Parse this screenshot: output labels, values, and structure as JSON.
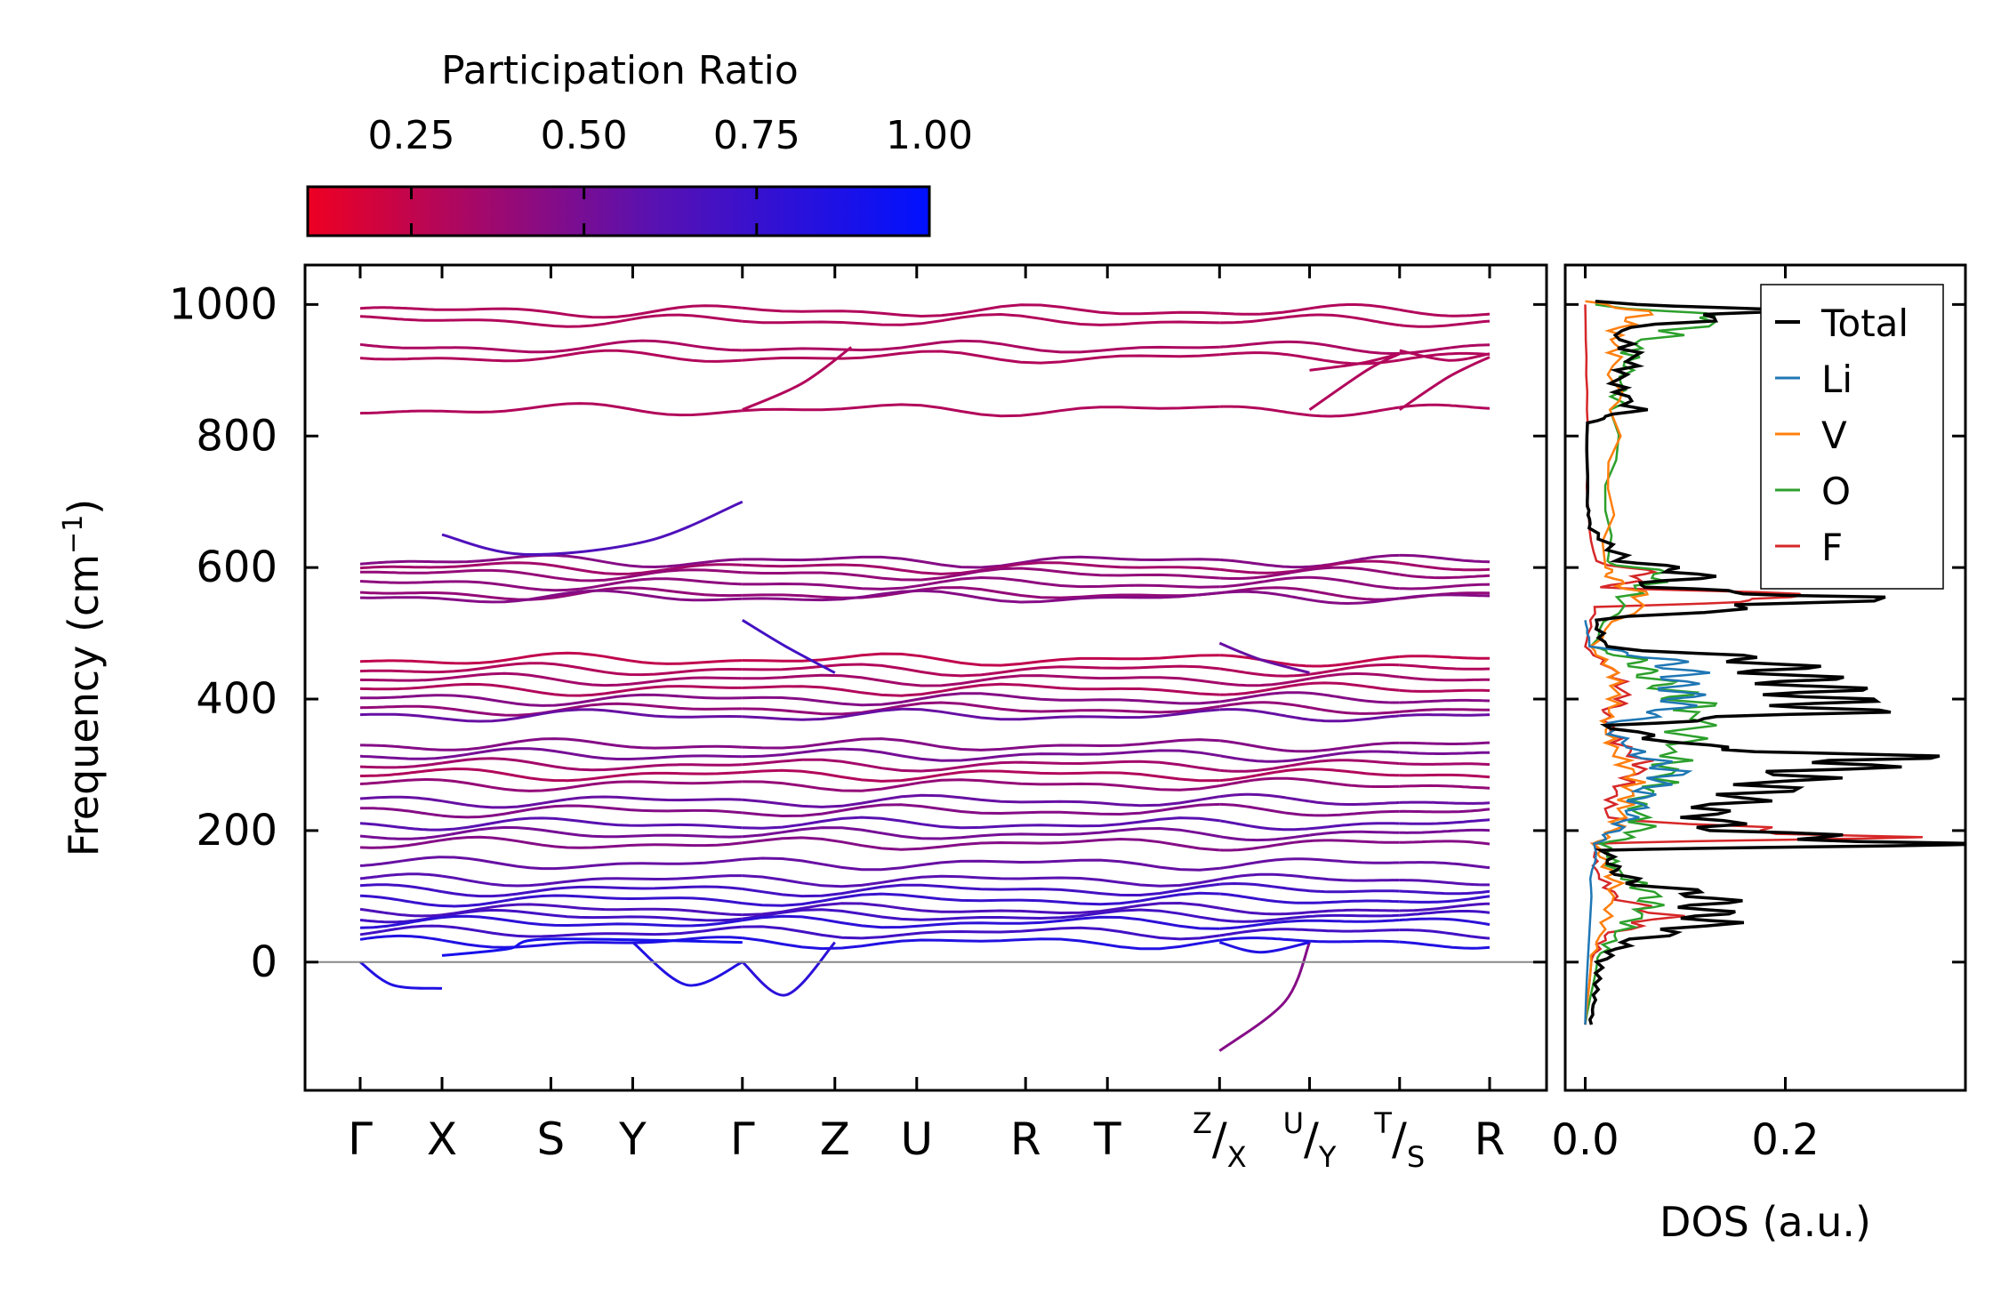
{
  "colorbar": {
    "title": "Participation Ratio",
    "range": [
      0.1,
      1.0
    ],
    "ticks": [
      0.25,
      0.5,
      0.75,
      1.0
    ],
    "tick_labels": [
      "0.25",
      "0.50",
      "0.75",
      "1.00"
    ],
    "colors": [
      "#ee0022",
      "#5a11b0",
      "#0011ff"
    ]
  },
  "chart_data": [
    {
      "type": "line",
      "subtype": "phonon-band-structure",
      "ylabel": "Frequency (cm",
      "ylabel_sup": "−1",
      "ylabel_end": ")",
      "ylim": [
        -195,
        1060
      ],
      "yticks": [
        0,
        200,
        400,
        600,
        800,
        1000
      ],
      "k_segments": [
        [
          0,
          1
        ],
        [
          1,
          4
        ],
        [
          4,
          7
        ],
        [
          7,
          8
        ],
        [
          8,
          9
        ],
        [
          9,
          10
        ],
        [
          10,
          11
        ]
      ],
      "k_ticks": [
        {
          "pos": 0,
          "label": "Γ"
        },
        {
          "pos": 1,
          "label": "X"
        },
        {
          "pos": 2.33,
          "label": "S"
        },
        {
          "pos": 3.33,
          "label": "Y"
        },
        {
          "pos": 4.67,
          "label": "Γ"
        },
        {
          "pos": 5.8,
          "label": "Z"
        },
        {
          "pos": 6.8,
          "label": "U"
        },
        {
          "pos": 8.13,
          "label": "R"
        },
        {
          "pos": 9.13,
          "label": "T"
        },
        {
          "pos": 10.5,
          "label": "X",
          "pre": "Z"
        },
        {
          "pos": 11.6,
          "label": "Y",
          "pre": "U"
        },
        {
          "pos": 12.7,
          "label": "S",
          "pre": "T"
        },
        {
          "pos": 13.8,
          "label": "R"
        }
      ],
      "segment_bounds": [
        0,
        1,
        4.67,
        10.5,
        11.6,
        12.7,
        13.8
      ],
      "flat_bands": [
        {
          "f": 990,
          "pr": 0.3
        },
        {
          "f": 975,
          "pr": 0.3
        },
        {
          "f": 935,
          "pr": 0.32
        },
        {
          "f": 920,
          "pr": 0.3
        },
        {
          "f": 840,
          "pr": 0.3
        },
        {
          "f": 610,
          "pr": 0.45
        },
        {
          "f": 600,
          "pr": 0.35
        },
        {
          "f": 590,
          "pr": 0.4
        },
        {
          "f": 575,
          "pr": 0.42
        },
        {
          "f": 560,
          "pr": 0.4
        },
        {
          "f": 555,
          "pr": 0.45
        },
        {
          "f": 460,
          "pr": 0.25
        },
        {
          "f": 445,
          "pr": 0.3
        },
        {
          "f": 430,
          "pr": 0.35
        },
        {
          "f": 415,
          "pr": 0.3
        },
        {
          "f": 400,
          "pr": 0.45
        },
        {
          "f": 385,
          "pr": 0.4
        },
        {
          "f": 375,
          "pr": 0.55
        },
        {
          "f": 330,
          "pr": 0.45
        },
        {
          "f": 315,
          "pr": 0.5
        },
        {
          "f": 300,
          "pr": 0.35
        },
        {
          "f": 285,
          "pr": 0.3
        },
        {
          "f": 270,
          "pr": 0.4
        },
        {
          "f": 245,
          "pr": 0.55
        },
        {
          "f": 230,
          "pr": 0.45
        },
        {
          "f": 210,
          "pr": 0.6
        },
        {
          "f": 195,
          "pr": 0.5
        },
        {
          "f": 180,
          "pr": 0.45
        },
        {
          "f": 150,
          "pr": 0.55
        },
        {
          "f": 125,
          "pr": 0.6
        },
        {
          "f": 110,
          "pr": 0.7
        },
        {
          "f": 95,
          "pr": 0.75
        },
        {
          "f": 80,
          "pr": 0.65
        },
        {
          "f": 70,
          "pr": 0.7
        },
        {
          "f": 60,
          "pr": 0.8
        },
        {
          "f": 45,
          "pr": 0.7
        },
        {
          "f": 30,
          "pr": 0.85
        }
      ],
      "curved_bands": [
        {
          "k": [
            0,
            0.4,
            1
          ],
          "f": [
            0,
            -35,
            -40
          ],
          "pr": 0.85
        },
        {
          "k": [
            1,
            1.8,
            2.3,
            4.67
          ],
          "f": [
            10,
            20,
            35,
            30
          ],
          "pr": 0.9
        },
        {
          "k": [
            3.33,
            4.0,
            4.67
          ],
          "f": [
            30,
            -35,
            0
          ],
          "pr": 0.85
        },
        {
          "k": [
            1,
            2.0,
            3.5,
            4.67
          ],
          "f": [
            650,
            620,
            640,
            700
          ],
          "pr": 0.65
        },
        {
          "k": [
            4.67,
            5.2,
            5.8
          ],
          "f": [
            520,
            480,
            440
          ],
          "pr": 0.7
        },
        {
          "k": [
            4.67,
            5.2,
            5.8
          ],
          "f": [
            0,
            -50,
            30
          ],
          "pr": 0.8
        },
        {
          "k": [
            4.67,
            5.4,
            6.0
          ],
          "f": [
            840,
            880,
            935
          ],
          "pr": 0.3
        },
        {
          "k": [
            10.5,
            11.3,
            11.6
          ],
          "f": [
            -135,
            -60,
            30
          ],
          "pr": 0.45
        },
        {
          "k": [
            10.5,
            11.0,
            11.6
          ],
          "f": [
            485,
            460,
            440
          ],
          "pr": 0.55
        },
        {
          "k": [
            10.5,
            11.0,
            11.6
          ],
          "f": [
            30,
            15,
            30
          ],
          "pr": 0.85
        },
        {
          "k": [
            11.6,
            12.3,
            12.7
          ],
          "f": [
            840,
            900,
            925
          ],
          "pr": 0.3
        },
        {
          "k": [
            12.7,
            13.3,
            13.8
          ],
          "f": [
            840,
            890,
            920
          ],
          "pr": 0.3
        },
        {
          "k": [
            11.6,
            12.2,
            12.7
          ],
          "f": [
            900,
            910,
            925
          ],
          "pr": 0.3
        },
        {
          "k": [
            12.7,
            13.3,
            13.8
          ],
          "f": [
            930,
            915,
            925
          ],
          "pr": 0.3
        }
      ],
      "zero_line": 0
    },
    {
      "type": "line",
      "subtype": "density-of-states",
      "xlabel": "DOS (a.u.)",
      "xlim": [
        -0.02,
        0.38
      ],
      "xticks": [
        0.0,
        0.2
      ],
      "xtick_labels": [
        "0.0",
        "0.2"
      ],
      "ylim": [
        -195,
        1060
      ],
      "legend_position": "top-right",
      "series": [
        {
          "name": "Total",
          "color": "#000000",
          "f": [
            -95,
            -50,
            0,
            30,
            60,
            80,
            100,
            120,
            140,
            170,
            180,
            200,
            230,
            260,
            290,
            310,
            330,
            360,
            380,
            400,
            420,
            440,
            460,
            480,
            520,
            555,
            570,
            590,
            610,
            660,
            700,
            820,
            840,
            880,
            920,
            960,
            990,
            1005
          ],
          "v": [
            0.005,
            0.01,
            0.015,
            0.04,
            0.13,
            0.12,
            0.13,
            0.05,
            0.03,
            0.02,
            0.35,
            0.14,
            0.12,
            0.18,
            0.22,
            0.32,
            0.1,
            0.02,
            0.25,
            0.24,
            0.23,
            0.2,
            0.18,
            0.02,
            0.01,
            0.29,
            0.05,
            0.12,
            0.04,
            0.005,
            0.002,
            0.002,
            0.05,
            0.03,
            0.05,
            0.03,
            0.18,
            0.01
          ]
        },
        {
          "name": "Li",
          "color": "#1f77b4",
          "f": [
            -95,
            0,
            100,
            180,
            200,
            230,
            260,
            290,
            320,
            360,
            380,
            400,
            420,
            440,
            460,
            480,
            520
          ],
          "v": [
            0.0,
            0.002,
            0.005,
            0.01,
            0.03,
            0.05,
            0.06,
            0.09,
            0.05,
            0.02,
            0.08,
            0.1,
            0.09,
            0.1,
            0.08,
            0.005,
            0.0
          ]
        },
        {
          "name": "V",
          "color": "#ff7f0e",
          "f": [
            -95,
            0,
            60,
            120,
            150,
            180,
            200,
            240,
            280,
            320,
            360,
            400,
            440,
            480,
            555,
            580,
            600,
            840,
            920,
            960,
            990,
            1005
          ],
          "v": [
            0.0,
            0.005,
            0.02,
            0.03,
            0.02,
            0.01,
            0.03,
            0.04,
            0.05,
            0.03,
            0.02,
            0.03,
            0.03,
            0.005,
            0.06,
            0.03,
            0.02,
            0.03,
            0.03,
            0.03,
            0.06,
            0.0
          ]
        },
        {
          "name": "O",
          "color": "#2ca02c",
          "f": [
            -95,
            0,
            40,
            80,
            100,
            140,
            180,
            200,
            240,
            280,
            320,
            380,
            400,
            420,
            440,
            460,
            480,
            555,
            590,
            610,
            840,
            900,
            940,
            980,
            1000
          ],
          "v": [
            0.0,
            0.01,
            0.03,
            0.06,
            0.07,
            0.03,
            0.02,
            0.06,
            0.05,
            0.08,
            0.09,
            0.12,
            0.1,
            0.08,
            0.06,
            0.05,
            0.005,
            0.04,
            0.08,
            0.02,
            0.03,
            0.04,
            0.05,
            0.14,
            0.01
          ]
        },
        {
          "name": "F",
          "color": "#d62728",
          "f": [
            -95,
            0,
            40,
            70,
            100,
            140,
            180,
            190,
            220,
            260,
            300,
            340,
            380,
            400,
            440,
            480,
            540,
            555,
            570,
            590,
            610,
            700,
            840,
            1000
          ],
          "v": [
            0.0,
            0.005,
            0.02,
            0.08,
            0.03,
            0.01,
            0.01,
            0.28,
            0.02,
            0.03,
            0.06,
            0.03,
            0.02,
            0.04,
            0.03,
            0.0,
            0.01,
            0.26,
            0.02,
            0.07,
            0.01,
            0.002,
            0.002,
            0.0
          ]
        }
      ]
    }
  ]
}
